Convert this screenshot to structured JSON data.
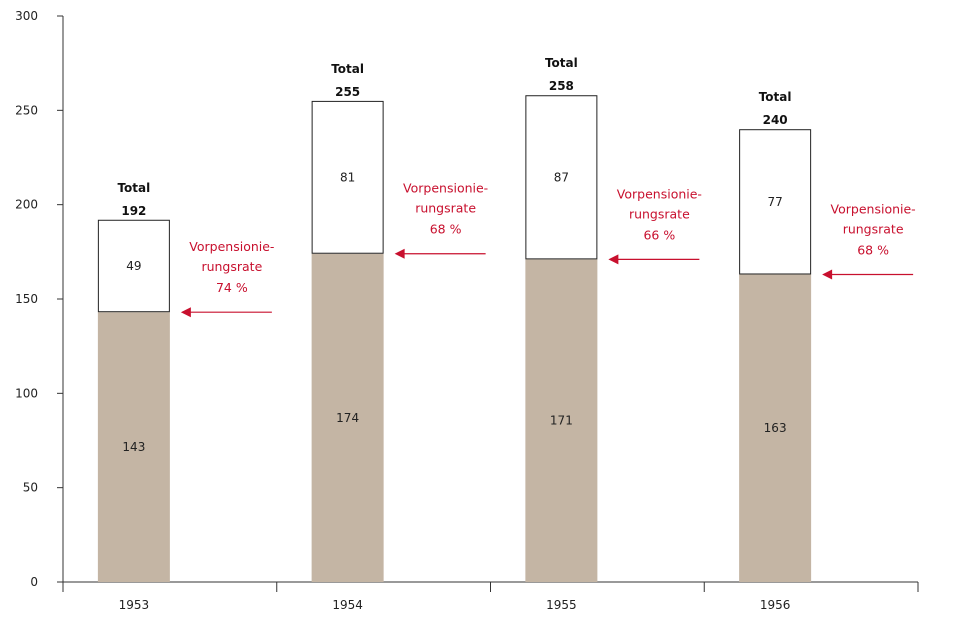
{
  "chart_data": {
    "type": "bar",
    "stacked": true,
    "categories": [
      "1953",
      "1954",
      "1955",
      "1956"
    ],
    "series": [
      {
        "values": [
          143,
          174,
          171,
          163
        ],
        "color": "#c4b5a4"
      },
      {
        "values": [
          49,
          81,
          87,
          77
        ],
        "color": "#ffffff"
      }
    ],
    "totals": [
      192,
      255,
      258,
      240
    ],
    "total_label": "Total",
    "annotations": [
      {
        "line1": "Vorpensionie-",
        "line2": "rungsrate",
        "line3": "74 %"
      },
      {
        "line1": "Vorpensionie-",
        "line2": "rungsrate",
        "line3": "68 %"
      },
      {
        "line1": "Vorpensionie-",
        "line2": "rungsrate",
        "line3": "66 %"
      },
      {
        "line1": "Vorpensionie-",
        "line2": "rungsrate",
        "line3": "68 %"
      }
    ],
    "annotation_color": "#c8102e",
    "ylim": [
      0,
      300
    ],
    "yticks": [
      0,
      50,
      100,
      150,
      200,
      250,
      300
    ],
    "grid": false,
    "legend": "none"
  }
}
